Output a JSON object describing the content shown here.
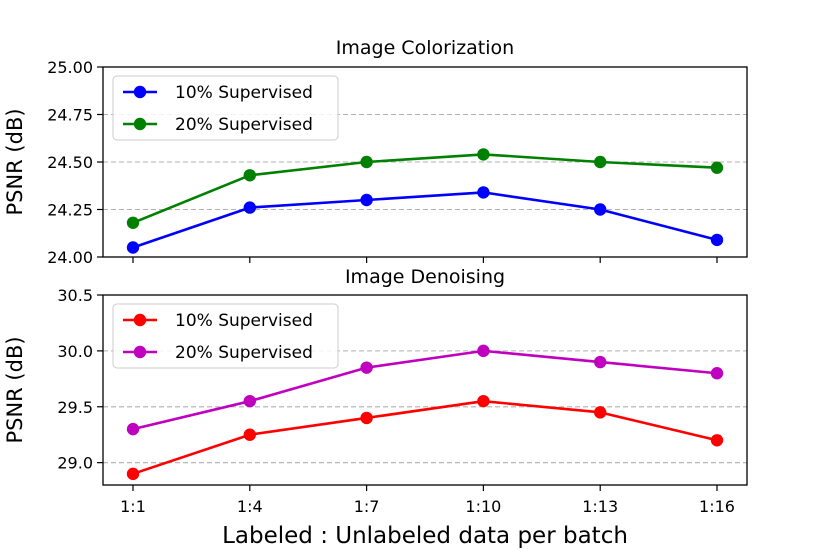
{
  "figure": {
    "xlabel": "Labeled : Unlabeled data per batch"
  },
  "chart_data": [
    {
      "type": "line",
      "title": "Image Colorization",
      "xlabel": "Labeled : Unlabeled data per batch",
      "ylabel": "PSNR (dB)",
      "categories": [
        "1:1",
        "1:4",
        "1:7",
        "1:10",
        "1:13",
        "1:16"
      ],
      "ylim": [
        24.0,
        25.0
      ],
      "yticks": [
        24.0,
        24.25,
        24.5,
        24.75,
        25.0
      ],
      "ytick_labels": [
        "24.00",
        "24.25",
        "24.50",
        "24.75",
        "25.00"
      ],
      "grid": "horizontal dashed",
      "legend_position": "top-left",
      "series": [
        {
          "name": "10% Supervised",
          "color": "#0000ff",
          "values": [
            24.05,
            24.26,
            24.3,
            24.34,
            24.25,
            24.09
          ]
        },
        {
          "name": "20% Supervised",
          "color": "#008000",
          "values": [
            24.18,
            24.43,
            24.5,
            24.54,
            24.5,
            24.47
          ]
        }
      ]
    },
    {
      "type": "line",
      "title": "Image Denoising",
      "xlabel": "Labeled : Unlabeled data per batch",
      "ylabel": "PSNR (dB)",
      "categories": [
        "1:1",
        "1:4",
        "1:7",
        "1:10",
        "1:13",
        "1:16"
      ],
      "ylim": [
        28.8,
        30.5
      ],
      "yticks": [
        29.0,
        29.5,
        30.0,
        30.5
      ],
      "ytick_labels": [
        "29.0",
        "29.5",
        "30.0",
        "30.5"
      ],
      "grid": "horizontal dashed",
      "legend_position": "top-left",
      "series": [
        {
          "name": "10% Supervised",
          "color": "#ff0000",
          "values": [
            28.9,
            29.25,
            29.4,
            29.55,
            29.45,
            29.2
          ]
        },
        {
          "name": "20% Supervised",
          "color": "#bf00bf",
          "values": [
            29.3,
            29.55,
            29.85,
            30.0,
            29.9,
            29.8
          ]
        }
      ]
    }
  ]
}
